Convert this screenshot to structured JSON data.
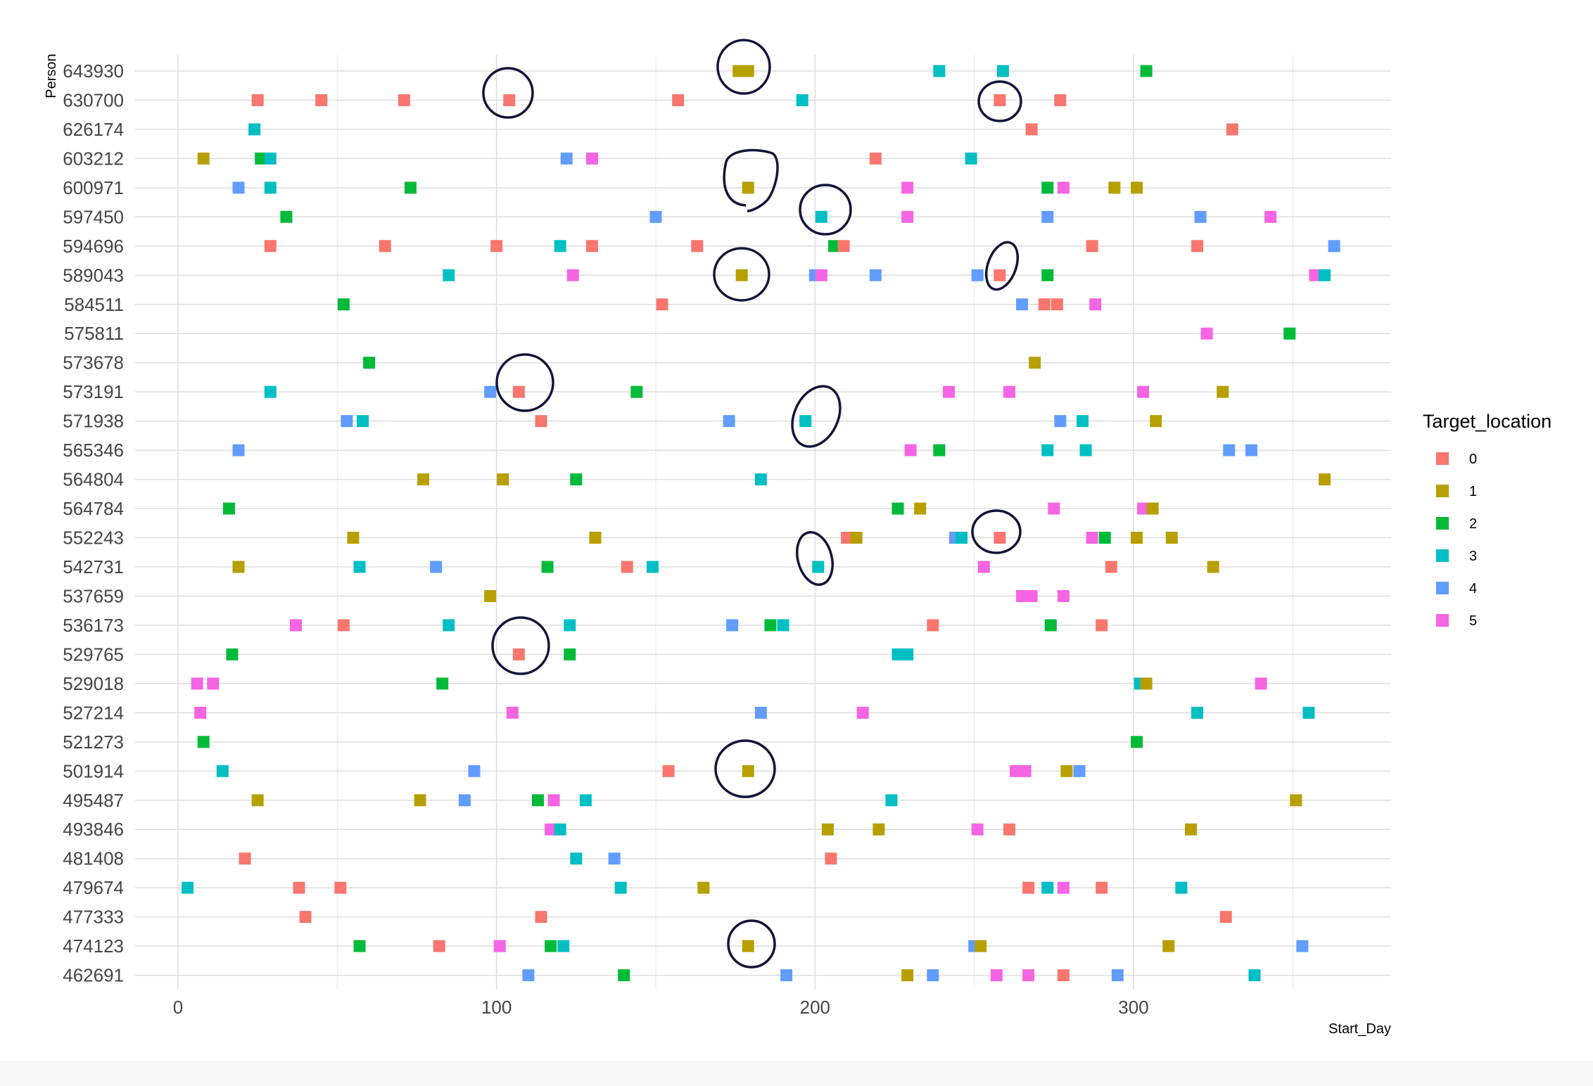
{
  "chart_data": {
    "type": "scatter",
    "xlabel": "Start_Day",
    "ylabel": "Person",
    "xlim": [
      -15,
      380
    ],
    "x_ticks": [
      0,
      100,
      200,
      300
    ],
    "legend": {
      "title": "Target_location",
      "placement": "right",
      "entries": [
        {
          "label": "0",
          "color": "#F8766D"
        },
        {
          "label": "1",
          "color": "#B79F00"
        },
        {
          "label": "2",
          "color": "#00BA38"
        },
        {
          "label": "3",
          "color": "#00BFC4"
        },
        {
          "label": "4",
          "color": "#619CFF"
        },
        {
          "label": "5",
          "color": "#F564E3"
        }
      ]
    },
    "persons": [
      "643930",
      "630700",
      "626174",
      "603212",
      "600971",
      "597450",
      "594696",
      "589043",
      "584511",
      "575811",
      "573678",
      "573191",
      "571938",
      "565346",
      "564804",
      "564784",
      "552243",
      "542731",
      "537659",
      "536173",
      "529765",
      "529018",
      "527214",
      "521273",
      "501914",
      "495487",
      "493846",
      "481408",
      "479674",
      "477333",
      "474123",
      "462691"
    ],
    "points": [
      {
        "person": "643930",
        "x": 176,
        "loc": 1
      },
      {
        "person": "643930",
        "x": 179,
        "loc": 1
      },
      {
        "person": "643930",
        "x": 239,
        "loc": 3
      },
      {
        "person": "643930",
        "x": 259,
        "loc": 3
      },
      {
        "person": "643930",
        "x": 304,
        "loc": 2
      },
      {
        "person": "630700",
        "x": 25,
        "loc": 0
      },
      {
        "person": "630700",
        "x": 45,
        "loc": 0
      },
      {
        "person": "630700",
        "x": 71,
        "loc": 0
      },
      {
        "person": "630700",
        "x": 104,
        "loc": 0
      },
      {
        "person": "630700",
        "x": 157,
        "loc": 0
      },
      {
        "person": "630700",
        "x": 196,
        "loc": 3
      },
      {
        "person": "630700",
        "x": 258,
        "loc": 0
      },
      {
        "person": "630700",
        "x": 277,
        "loc": 0
      },
      {
        "person": "626174",
        "x": 24,
        "loc": 3
      },
      {
        "person": "626174",
        "x": 268,
        "loc": 0
      },
      {
        "person": "626174",
        "x": 331,
        "loc": 0
      },
      {
        "person": "603212",
        "x": 8,
        "loc": 1
      },
      {
        "person": "603212",
        "x": 26,
        "loc": 2
      },
      {
        "person": "603212",
        "x": 29,
        "loc": 3
      },
      {
        "person": "603212",
        "x": 122,
        "loc": 4
      },
      {
        "person": "603212",
        "x": 130,
        "loc": 5
      },
      {
        "person": "603212",
        "x": 219,
        "loc": 0
      },
      {
        "person": "603212",
        "x": 249,
        "loc": 3
      },
      {
        "person": "600971",
        "x": 19,
        "loc": 4
      },
      {
        "person": "600971",
        "x": 29,
        "loc": 3
      },
      {
        "person": "600971",
        "x": 73,
        "loc": 2
      },
      {
        "person": "600971",
        "x": 179,
        "loc": 1
      },
      {
        "person": "600971",
        "x": 229,
        "loc": 5
      },
      {
        "person": "600971",
        "x": 273,
        "loc": 2
      },
      {
        "person": "600971",
        "x": 278,
        "loc": 5
      },
      {
        "person": "600971",
        "x": 294,
        "loc": 1
      },
      {
        "person": "600971",
        "x": 301,
        "loc": 1
      },
      {
        "person": "597450",
        "x": 34,
        "loc": 2
      },
      {
        "person": "597450",
        "x": 150,
        "loc": 4
      },
      {
        "person": "597450",
        "x": 202,
        "loc": 3
      },
      {
        "person": "597450",
        "x": 229,
        "loc": 5
      },
      {
        "person": "597450",
        "x": 273,
        "loc": 4
      },
      {
        "person": "597450",
        "x": 321,
        "loc": 4
      },
      {
        "person": "597450",
        "x": 343,
        "loc": 5
      },
      {
        "person": "594696",
        "x": 29,
        "loc": 0
      },
      {
        "person": "594696",
        "x": 65,
        "loc": 0
      },
      {
        "person": "594696",
        "x": 100,
        "loc": 0
      },
      {
        "person": "594696",
        "x": 120,
        "loc": 3
      },
      {
        "person": "594696",
        "x": 130,
        "loc": 0
      },
      {
        "person": "594696",
        "x": 163,
        "loc": 0
      },
      {
        "person": "594696",
        "x": 206,
        "loc": 2
      },
      {
        "person": "594696",
        "x": 209,
        "loc": 0
      },
      {
        "person": "594696",
        "x": 287,
        "loc": 0
      },
      {
        "person": "594696",
        "x": 320,
        "loc": 0
      },
      {
        "person": "594696",
        "x": 363,
        "loc": 4
      },
      {
        "person": "589043",
        "x": 85,
        "loc": 3
      },
      {
        "person": "589043",
        "x": 124,
        "loc": 5
      },
      {
        "person": "589043",
        "x": 177,
        "loc": 1
      },
      {
        "person": "589043",
        "x": 200,
        "loc": 4
      },
      {
        "person": "589043",
        "x": 202,
        "loc": 5
      },
      {
        "person": "589043",
        "x": 219,
        "loc": 4
      },
      {
        "person": "589043",
        "x": 251,
        "loc": 4
      },
      {
        "person": "589043",
        "x": 258,
        "loc": 0
      },
      {
        "person": "589043",
        "x": 273,
        "loc": 2
      },
      {
        "person": "589043",
        "x": 357,
        "loc": 5
      },
      {
        "person": "589043",
        "x": 360,
        "loc": 3
      },
      {
        "person": "584511",
        "x": 52,
        "loc": 2
      },
      {
        "person": "584511",
        "x": 152,
        "loc": 0
      },
      {
        "person": "584511",
        "x": 265,
        "loc": 4
      },
      {
        "person": "584511",
        "x": 272,
        "loc": 0
      },
      {
        "person": "584511",
        "x": 276,
        "loc": 0
      },
      {
        "person": "584511",
        "x": 288,
        "loc": 5
      },
      {
        "person": "575811",
        "x": 323,
        "loc": 5
      },
      {
        "person": "575811",
        "x": 349,
        "loc": 2
      },
      {
        "person": "573678",
        "x": 60,
        "loc": 2
      },
      {
        "person": "573678",
        "x": 269,
        "loc": 1
      },
      {
        "person": "573191",
        "x": 29,
        "loc": 3
      },
      {
        "person": "573191",
        "x": 98,
        "loc": 4
      },
      {
        "person": "573191",
        "x": 107,
        "loc": 0
      },
      {
        "person": "573191",
        "x": 144,
        "loc": 2
      },
      {
        "person": "573191",
        "x": 242,
        "loc": 5
      },
      {
        "person": "573191",
        "x": 261,
        "loc": 5
      },
      {
        "person": "573191",
        "x": 303,
        "loc": 5
      },
      {
        "person": "573191",
        "x": 328,
        "loc": 1
      },
      {
        "person": "571938",
        "x": 53,
        "loc": 4
      },
      {
        "person": "571938",
        "x": 58,
        "loc": 3
      },
      {
        "person": "571938",
        "x": 114,
        "loc": 0
      },
      {
        "person": "571938",
        "x": 173,
        "loc": 4
      },
      {
        "person": "571938",
        "x": 197,
        "loc": 3
      },
      {
        "person": "571938",
        "x": 277,
        "loc": 4
      },
      {
        "person": "571938",
        "x": 284,
        "loc": 3
      },
      {
        "person": "571938",
        "x": 307,
        "loc": 1
      },
      {
        "person": "565346",
        "x": 19,
        "loc": 4
      },
      {
        "person": "565346",
        "x": 230,
        "loc": 5
      },
      {
        "person": "565346",
        "x": 239,
        "loc": 2
      },
      {
        "person": "565346",
        "x": 273,
        "loc": 3
      },
      {
        "person": "565346",
        "x": 285,
        "loc": 3
      },
      {
        "person": "565346",
        "x": 330,
        "loc": 4
      },
      {
        "person": "565346",
        "x": 337,
        "loc": 4
      },
      {
        "person": "564804",
        "x": 77,
        "loc": 1
      },
      {
        "person": "564804",
        "x": 102,
        "loc": 1
      },
      {
        "person": "564804",
        "x": 125,
        "loc": 2
      },
      {
        "person": "564804",
        "x": 183,
        "loc": 3
      },
      {
        "person": "564804",
        "x": 360,
        "loc": 1
      },
      {
        "person": "564784",
        "x": 16,
        "loc": 2
      },
      {
        "person": "564784",
        "x": 226,
        "loc": 2
      },
      {
        "person": "564784",
        "x": 233,
        "loc": 1
      },
      {
        "person": "564784",
        "x": 275,
        "loc": 5
      },
      {
        "person": "564784",
        "x": 303,
        "loc": 5
      },
      {
        "person": "564784",
        "x": 306,
        "loc": 1
      },
      {
        "person": "552243",
        "x": 55,
        "loc": 1
      },
      {
        "person": "552243",
        "x": 131,
        "loc": 1
      },
      {
        "person": "552243",
        "x": 210,
        "loc": 0
      },
      {
        "person": "552243",
        "x": 213,
        "loc": 1
      },
      {
        "person": "552243",
        "x": 244,
        "loc": 4
      },
      {
        "person": "552243",
        "x": 246,
        "loc": 3
      },
      {
        "person": "552243",
        "x": 258,
        "loc": 0
      },
      {
        "person": "552243",
        "x": 287,
        "loc": 5
      },
      {
        "person": "552243",
        "x": 291,
        "loc": 2
      },
      {
        "person": "552243",
        "x": 301,
        "loc": 1
      },
      {
        "person": "552243",
        "x": 312,
        "loc": 1
      },
      {
        "person": "542731",
        "x": 19,
        "loc": 1
      },
      {
        "person": "542731",
        "x": 57,
        "loc": 3
      },
      {
        "person": "542731",
        "x": 81,
        "loc": 4
      },
      {
        "person": "542731",
        "x": 116,
        "loc": 2
      },
      {
        "person": "542731",
        "x": 141,
        "loc": 0
      },
      {
        "person": "542731",
        "x": 149,
        "loc": 3
      },
      {
        "person": "542731",
        "x": 201,
        "loc": 3
      },
      {
        "person": "542731",
        "x": 253,
        "loc": 5
      },
      {
        "person": "542731",
        "x": 293,
        "loc": 0
      },
      {
        "person": "542731",
        "x": 325,
        "loc": 1
      },
      {
        "person": "537659",
        "x": 98,
        "loc": 1
      },
      {
        "person": "537659",
        "x": 265,
        "loc": 5
      },
      {
        "person": "537659",
        "x": 268,
        "loc": 5
      },
      {
        "person": "537659",
        "x": 278,
        "loc": 5
      },
      {
        "person": "536173",
        "x": 37,
        "loc": 5
      },
      {
        "person": "536173",
        "x": 52,
        "loc": 0
      },
      {
        "person": "536173",
        "x": 85,
        "loc": 3
      },
      {
        "person": "536173",
        "x": 123,
        "loc": 3
      },
      {
        "person": "536173",
        "x": 174,
        "loc": 4
      },
      {
        "person": "536173",
        "x": 186,
        "loc": 2
      },
      {
        "person": "536173",
        "x": 190,
        "loc": 3
      },
      {
        "person": "536173",
        "x": 237,
        "loc": 0
      },
      {
        "person": "536173",
        "x": 274,
        "loc": 2
      },
      {
        "person": "536173",
        "x": 290,
        "loc": 0
      },
      {
        "person": "529765",
        "x": 17,
        "loc": 2
      },
      {
        "person": "529765",
        "x": 107,
        "loc": 0
      },
      {
        "person": "529765",
        "x": 123,
        "loc": 2
      },
      {
        "person": "529765",
        "x": 226,
        "loc": 3
      },
      {
        "person": "529765",
        "x": 229,
        "loc": 3
      },
      {
        "person": "529018",
        "x": 6,
        "loc": 5
      },
      {
        "person": "529018",
        "x": 11,
        "loc": 5
      },
      {
        "person": "529018",
        "x": 83,
        "loc": 2
      },
      {
        "person": "529018",
        "x": 302,
        "loc": 3
      },
      {
        "person": "529018",
        "x": 304,
        "loc": 1
      },
      {
        "person": "529018",
        "x": 340,
        "loc": 5
      },
      {
        "person": "527214",
        "x": 7,
        "loc": 5
      },
      {
        "person": "527214",
        "x": 105,
        "loc": 5
      },
      {
        "person": "527214",
        "x": 183,
        "loc": 4
      },
      {
        "person": "527214",
        "x": 215,
        "loc": 5
      },
      {
        "person": "527214",
        "x": 320,
        "loc": 3
      },
      {
        "person": "527214",
        "x": 355,
        "loc": 3
      },
      {
        "person": "521273",
        "x": 8,
        "loc": 2
      },
      {
        "person": "521273",
        "x": 301,
        "loc": 2
      },
      {
        "person": "501914",
        "x": 14,
        "loc": 3
      },
      {
        "person": "501914",
        "x": 93,
        "loc": 4
      },
      {
        "person": "501914",
        "x": 154,
        "loc": 0
      },
      {
        "person": "501914",
        "x": 179,
        "loc": 1
      },
      {
        "person": "501914",
        "x": 263,
        "loc": 5
      },
      {
        "person": "501914",
        "x": 266,
        "loc": 5
      },
      {
        "person": "501914",
        "x": 279,
        "loc": 1
      },
      {
        "person": "501914",
        "x": 283,
        "loc": 4
      },
      {
        "person": "495487",
        "x": 25,
        "loc": 1
      },
      {
        "person": "495487",
        "x": 76,
        "loc": 1
      },
      {
        "person": "495487",
        "x": 90,
        "loc": 4
      },
      {
        "person": "495487",
        "x": 113,
        "loc": 2
      },
      {
        "person": "495487",
        "x": 118,
        "loc": 5
      },
      {
        "person": "495487",
        "x": 128,
        "loc": 3
      },
      {
        "person": "495487",
        "x": 224,
        "loc": 3
      },
      {
        "person": "495487",
        "x": 351,
        "loc": 1
      },
      {
        "person": "493846",
        "x": 117,
        "loc": 5
      },
      {
        "person": "493846",
        "x": 120,
        "loc": 3
      },
      {
        "person": "493846",
        "x": 204,
        "loc": 1
      },
      {
        "person": "493846",
        "x": 220,
        "loc": 1
      },
      {
        "person": "493846",
        "x": 251,
        "loc": 5
      },
      {
        "person": "493846",
        "x": 261,
        "loc": 0
      },
      {
        "person": "493846",
        "x": 318,
        "loc": 1
      },
      {
        "person": "481408",
        "x": 21,
        "loc": 0
      },
      {
        "person": "481408",
        "x": 125,
        "loc": 3
      },
      {
        "person": "481408",
        "x": 137,
        "loc": 4
      },
      {
        "person": "481408",
        "x": 205,
        "loc": 0
      },
      {
        "person": "479674",
        "x": 3,
        "loc": 3
      },
      {
        "person": "479674",
        "x": 38,
        "loc": 0
      },
      {
        "person": "479674",
        "x": 51,
        "loc": 0
      },
      {
        "person": "479674",
        "x": 139,
        "loc": 3
      },
      {
        "person": "479674",
        "x": 165,
        "loc": 1
      },
      {
        "person": "479674",
        "x": 267,
        "loc": 0
      },
      {
        "person": "479674",
        "x": 273,
        "loc": 3
      },
      {
        "person": "479674",
        "x": 278,
        "loc": 5
      },
      {
        "person": "479674",
        "x": 290,
        "loc": 0
      },
      {
        "person": "479674",
        "x": 315,
        "loc": 3
      },
      {
        "person": "477333",
        "x": 40,
        "loc": 0
      },
      {
        "person": "477333",
        "x": 114,
        "loc": 0
      },
      {
        "person": "477333",
        "x": 329,
        "loc": 0
      },
      {
        "person": "474123",
        "x": 57,
        "loc": 2
      },
      {
        "person": "474123",
        "x": 82,
        "loc": 0
      },
      {
        "person": "474123",
        "x": 101,
        "loc": 5
      },
      {
        "person": "474123",
        "x": 117,
        "loc": 2
      },
      {
        "person": "474123",
        "x": 121,
        "loc": 3
      },
      {
        "person": "474123",
        "x": 179,
        "loc": 1
      },
      {
        "person": "474123",
        "x": 250,
        "loc": 4
      },
      {
        "person": "474123",
        "x": 252,
        "loc": 1
      },
      {
        "person": "474123",
        "x": 311,
        "loc": 1
      },
      {
        "person": "474123",
        "x": 353,
        "loc": 4
      },
      {
        "person": "462691",
        "x": 110,
        "loc": 4
      },
      {
        "person": "462691",
        "x": 140,
        "loc": 2
      },
      {
        "person": "462691",
        "x": 191,
        "loc": 4
      },
      {
        "person": "462691",
        "x": 229,
        "loc": 1
      },
      {
        "person": "462691",
        "x": 237,
        "loc": 4
      },
      {
        "person": "462691",
        "x": 257,
        "loc": 5
      },
      {
        "person": "462691",
        "x": 267,
        "loc": 5
      },
      {
        "person": "462691",
        "x": 278,
        "loc": 0
      },
      {
        "person": "462691",
        "x": 295,
        "loc": 4
      },
      {
        "person": "462691",
        "x": 338,
        "loc": 3
      }
    ]
  }
}
